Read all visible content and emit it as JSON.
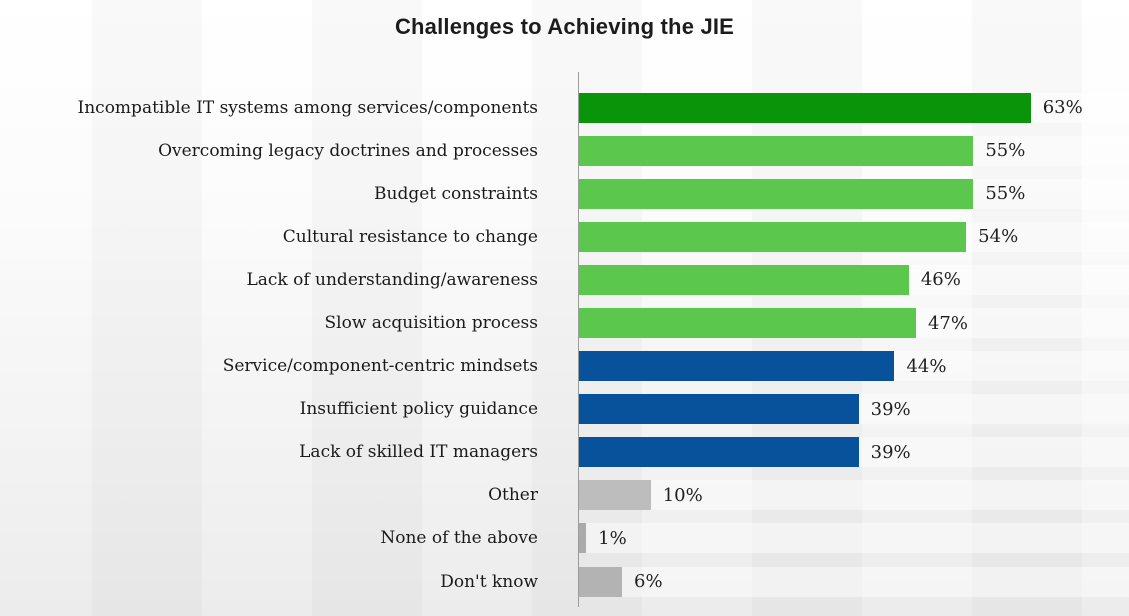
{
  "chart_data": {
    "type": "bar",
    "orientation": "horizontal",
    "title": "Challenges to Achieving the JIE",
    "categories": [
      "Incompatible IT systems among services/components",
      "Overcoming legacy doctrines and processes",
      "Budget constraints",
      "Cultural resistance to change",
      "Lack of understanding/awareness",
      "Slow acquisition process",
      "Service/component-centric mindsets",
      "Insufficient policy guidance",
      "Lack of skilled IT managers",
      "Other",
      "None of the above",
      "Don't know"
    ],
    "values": [
      63,
      55,
      55,
      54,
      46,
      47,
      44,
      39,
      39,
      10,
      1,
      6
    ],
    "value_labels": [
      "63%",
      "55%",
      "55%",
      "54%",
      "46%",
      "47%",
      "44%",
      "39%",
      "39%",
      "10%",
      "1%",
      "6%"
    ],
    "bar_colors": [
      "#0a9409",
      "#5bc84d",
      "#5bc84d",
      "#5bc84d",
      "#5bc84d",
      "#5bc84d",
      "#07529b",
      "#07529b",
      "#07529b",
      "#bdbdbd",
      "#ababab",
      "#b3b3b3"
    ],
    "xlim": [
      0,
      70
    ],
    "grid": false,
    "legend": "none",
    "axis_line_color": "#9b9b9b",
    "data_labels_position": "outside-end"
  },
  "colors": {
    "dark_green": "#0a9409",
    "light_green": "#5bc84d",
    "blue": "#07529b",
    "gray": "#bdbdbd",
    "title_text": "#1c1c1c",
    "label_text": "#1a1a1a"
  }
}
